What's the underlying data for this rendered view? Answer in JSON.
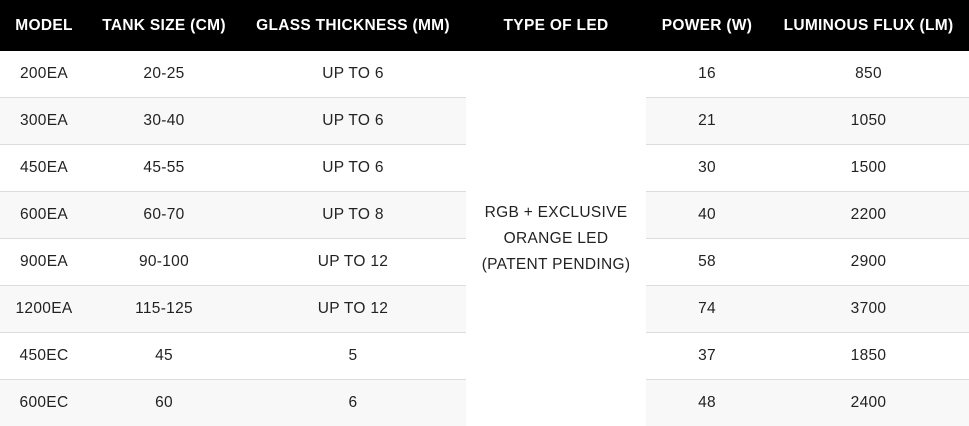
{
  "headers": [
    "MODEL",
    "TANK SIZE (CM)",
    "GLASS THICKNESS (MM)",
    "TYPE OF LED",
    "POWER (W)",
    "LUMINOUS FLUX (LM)"
  ],
  "led_type": [
    "RGB + EXCLUSIVE",
    "ORANGE LED",
    "(PATENT PENDING)"
  ],
  "rows": [
    {
      "model": "200EA",
      "tank": "20-25",
      "glass": "UP TO 6",
      "power": "16",
      "flux": "850"
    },
    {
      "model": "300EA",
      "tank": "30-40",
      "glass": "UP TO 6",
      "power": "21",
      "flux": "1050"
    },
    {
      "model": "450EA",
      "tank": "45-55",
      "glass": "UP TO 6",
      "power": "30",
      "flux": "1500"
    },
    {
      "model": "600EA",
      "tank": "60-70",
      "glass": "UP TO 8",
      "power": "40",
      "flux": "2200"
    },
    {
      "model": "900EA",
      "tank": "90-100",
      "glass": "UP TO 12",
      "power": "58",
      "flux": "2900"
    },
    {
      "model": "1200EA",
      "tank": "115-125",
      "glass": "UP TO 12",
      "power": "74",
      "flux": "3700"
    },
    {
      "model": "450EC",
      "tank": "45",
      "glass": "5",
      "power": "37",
      "flux": "1850"
    },
    {
      "model": "600EC",
      "tank": "60",
      "glass": "6",
      "power": "48",
      "flux": "2400"
    }
  ]
}
